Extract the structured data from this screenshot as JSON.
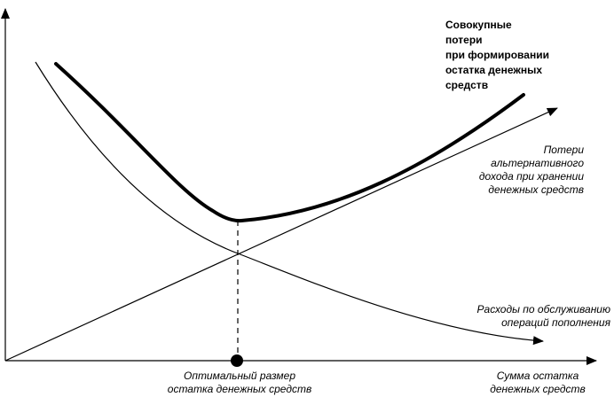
{
  "labels": {
    "total_costs": [
      "Совокупные",
      "потери",
      "при формировании",
      "остатка денежных",
      "средств"
    ],
    "opportunity_costs": [
      "Потери",
      "альтернативного",
      "дохода при хранении",
      "денежных средств"
    ],
    "service_costs": [
      "Расходы по обслуживанию",
      "операций пополнения"
    ],
    "optimal_point": [
      "Оптимальный размер",
      "остатка денежных средств"
    ],
    "x_axis": [
      "Сумма остатка",
      "денежных средств"
    ]
  }
}
